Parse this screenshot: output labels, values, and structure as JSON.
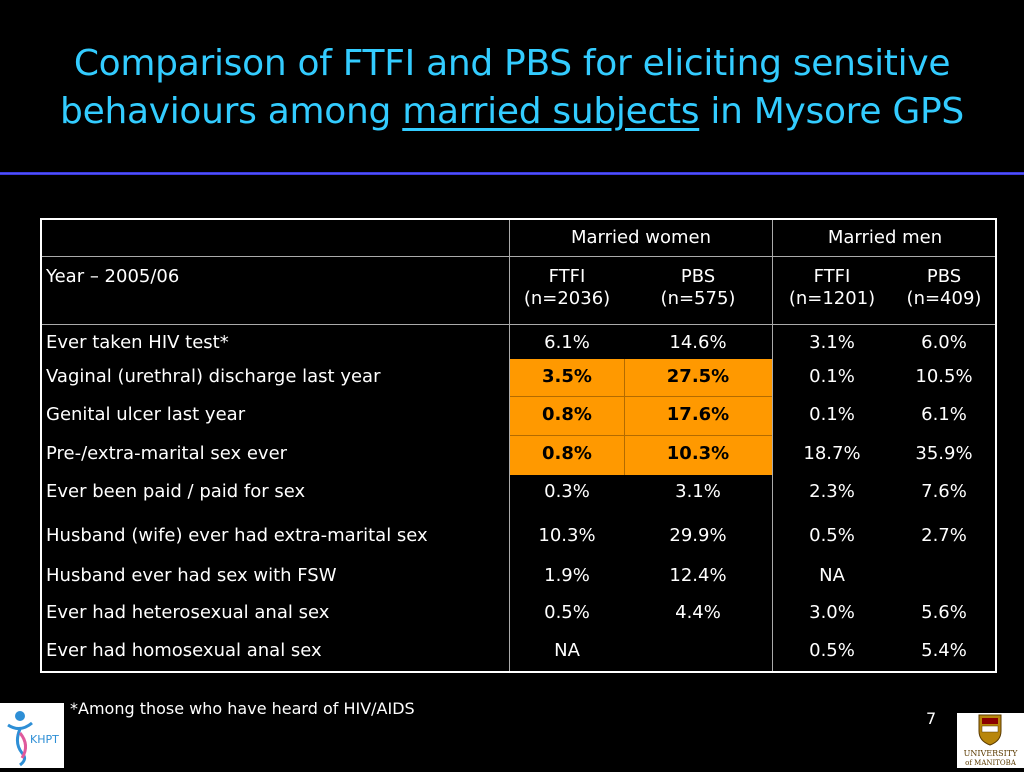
{
  "slide": {
    "title_line1": "Comparison of FTFI and PBS for eliciting sensitive",
    "title_line2_pre": "behaviours among ",
    "title_line2_u": "married subjects",
    "title_line2_post": " in Mysore GPS",
    "footnote": "*Among those who have heard of HIV/AIDS",
    "page_number": "7",
    "logo_left_text": "KHPT",
    "logo_right_line1": "UNIVERSITY",
    "logo_right_line2": "of MANITOBA"
  },
  "table": {
    "group_headers": [
      "Married women",
      "Married men"
    ],
    "year_label": "Year – 2005/06",
    "sub_headers": [
      {
        "name": "FTFI",
        "n": "(n=2036)"
      },
      {
        "name": "PBS",
        "n": "(n=575)"
      },
      {
        "name": "FTFI",
        "n": "(n=1201)"
      },
      {
        "name": "PBS",
        "n": "(n=409)"
      }
    ],
    "rows": [
      {
        "label": "Ever taken HIV test*",
        "values": [
          "6.1%",
          "14.6%",
          "3.1%",
          "6.0%"
        ]
      },
      {
        "label": "Vaginal (urethral) discharge last year",
        "values": [
          "3.5%",
          "27.5%",
          "0.1%",
          "10.5%"
        ]
      },
      {
        "label": "Genital ulcer last year",
        "values": [
          "0.8%",
          "17.6%",
          "0.1%",
          "6.1%"
        ]
      },
      {
        "label": "Pre-/extra-marital sex ever",
        "values": [
          "0.8%",
          "10.3%",
          "18.7%",
          "35.9%"
        ]
      },
      {
        "label": "Ever been paid / paid for sex",
        "values": [
          "0.3%",
          "3.1%",
          "2.3%",
          "7.6%"
        ]
      },
      {
        "label": "Husband (wife) ever had extra-marital sex",
        "values": [
          "10.3%",
          "29.9%",
          "0.5%",
          "2.7%"
        ]
      },
      {
        "label": "Husband ever had sex with FSW",
        "values": [
          "1.9%",
          "12.4%",
          "NA",
          ""
        ]
      },
      {
        "label": "Ever had heterosexual anal sex",
        "values": [
          "0.5%",
          "4.4%",
          "3.0%",
          "5.6%"
        ]
      },
      {
        "label": "Ever had homosexual anal sex",
        "values": [
          "NA",
          "",
          "0.5%",
          "5.4%"
        ]
      }
    ],
    "highlight_color": "#ff9900"
  }
}
